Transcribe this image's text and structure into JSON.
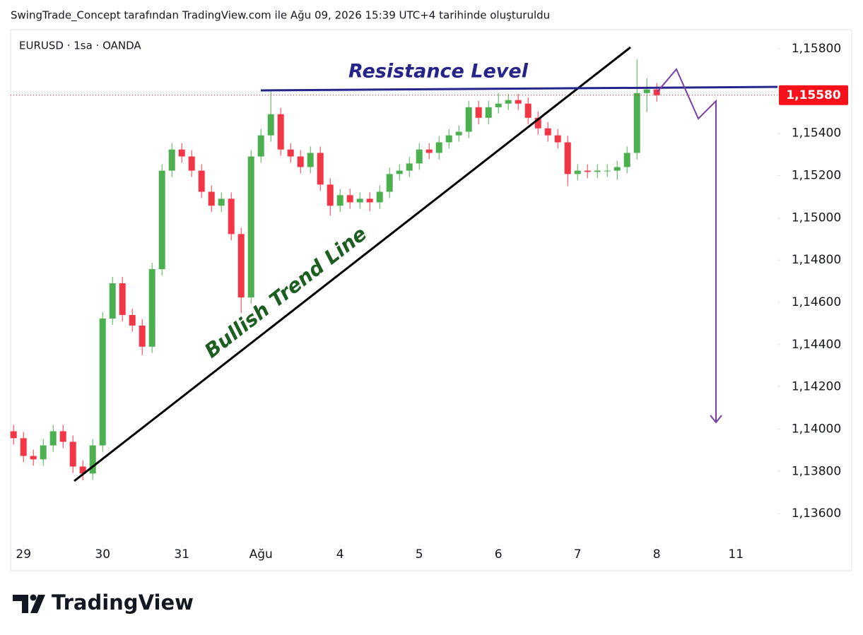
{
  "header": "SwingTrade_Concept tarafından TradingView.com ile Ağu 09, 2026 15:39 UTC+4 tarihinde oluşturuldu",
  "chart_data": {
    "type": "candlestick",
    "symbol": "EURUSD · 1sa · OANDA",
    "annotations": [
      "Resistance Level",
      "Bullish Trend Line"
    ],
    "up_color": "#4caf50",
    "down_color": "#f23645",
    "x": [
      -1,
      0,
      1,
      2,
      3,
      4,
      5,
      6,
      7,
      8,
      9,
      10,
      11,
      12,
      13,
      14,
      15,
      16,
      17,
      18,
      19,
      20,
      21,
      22,
      23,
      24,
      25,
      26,
      27,
      28,
      29,
      30,
      31,
      32,
      33,
      34,
      35,
      36,
      37,
      38,
      39,
      40,
      41,
      42,
      43,
      44,
      45,
      46,
      47,
      48,
      49,
      50,
      51,
      52,
      53,
      54,
      55,
      56,
      57,
      58,
      59,
      60,
      61,
      62,
      63,
      64
    ],
    "open": [
      1.1399,
      1.13957,
      1.13873,
      1.13857,
      1.13923,
      1.1399,
      1.1394,
      1.13823,
      1.1379,
      1.13923,
      1.14523,
      1.1469,
      1.1454,
      1.1449,
      1.1439,
      1.14757,
      1.15223,
      1.15323,
      1.1529,
      1.15223,
      1.15123,
      1.15057,
      1.1509,
      1.14923,
      1.14623,
      1.1529,
      1.1539,
      1.1549,
      1.15323,
      1.1529,
      1.1524,
      1.15307,
      1.15157,
      1.15057,
      1.15107,
      1.15073,
      1.1509,
      1.15073,
      1.15123,
      1.15207,
      1.15223,
      1.15257,
      1.15323,
      1.15307,
      1.15357,
      1.1539,
      1.15407,
      1.15523,
      1.15473,
      1.15523,
      1.1554,
      1.15557,
      1.1554,
      1.15473,
      1.15423,
      1.1539,
      1.15357,
      1.15207,
      1.15223,
      1.15217,
      1.15223,
      1.15223,
      1.1524,
      1.15307,
      1.1559,
      1.15607
    ],
    "high": [
      1.1402,
      1.13987,
      1.13903,
      1.13953,
      1.1402,
      1.1402,
      1.1397,
      1.13853,
      1.13953,
      1.14553,
      1.1472,
      1.1472,
      1.1457,
      1.1452,
      1.14787,
      1.15253,
      1.15353,
      1.15353,
      1.1532,
      1.15253,
      1.15153,
      1.1512,
      1.1512,
      1.14953,
      1.1532,
      1.1542,
      1.156,
      1.1552,
      1.15353,
      1.1532,
      1.15337,
      1.15337,
      1.15187,
      1.15137,
      1.15137,
      1.1512,
      1.1512,
      1.15153,
      1.15237,
      1.15253,
      1.15287,
      1.15353,
      1.15353,
      1.15387,
      1.1542,
      1.15437,
      1.15553,
      1.15553,
      1.15553,
      1.1559,
      1.15587,
      1.15587,
      1.1557,
      1.15503,
      1.15453,
      1.1542,
      1.15387,
      1.15253,
      1.15253,
      1.15253,
      1.15253,
      1.1527,
      1.15337,
      1.1575,
      1.1566,
      1.15637
    ],
    "low": [
      1.13927,
      1.13843,
      1.13827,
      1.13827,
      1.13893,
      1.1391,
      1.13793,
      1.13757,
      1.1376,
      1.13893,
      1.14493,
      1.1451,
      1.1446,
      1.1435,
      1.1436,
      1.14727,
      1.15193,
      1.1526,
      1.15193,
      1.15093,
      1.15027,
      1.15027,
      1.14893,
      1.1455,
      1.14593,
      1.1526,
      1.1536,
      1.15293,
      1.1526,
      1.1521,
      1.1521,
      1.15127,
      1.1501,
      1.15027,
      1.15043,
      1.15043,
      1.1503,
      1.15043,
      1.15093,
      1.15177,
      1.15193,
      1.15227,
      1.15277,
      1.15277,
      1.15327,
      1.1536,
      1.15377,
      1.15443,
      1.15443,
      1.15493,
      1.1551,
      1.1551,
      1.15443,
      1.15393,
      1.1536,
      1.15327,
      1.1515,
      1.15177,
      1.15187,
      1.15187,
      1.15193,
      1.1518,
      1.1521,
      1.15277,
      1.155,
      1.1555
    ],
    "close": [
      1.13957,
      1.13873,
      1.13857,
      1.13923,
      1.1399,
      1.1394,
      1.13823,
      1.1379,
      1.13923,
      1.14523,
      1.1469,
      1.1454,
      1.1449,
      1.1439,
      1.14757,
      1.15223,
      1.15323,
      1.1529,
      1.15223,
      1.15123,
      1.15057,
      1.1509,
      1.14923,
      1.14623,
      1.1529,
      1.1539,
      1.1549,
      1.15323,
      1.1529,
      1.1524,
      1.15307,
      1.15157,
      1.15057,
      1.15107,
      1.15073,
      1.1509,
      1.15073,
      1.15123,
      1.15207,
      1.15223,
      1.15257,
      1.15323,
      1.15307,
      1.15357,
      1.1539,
      1.15407,
      1.15523,
      1.15473,
      1.15523,
      1.1554,
      1.15557,
      1.1554,
      1.15473,
      1.15423,
      1.1539,
      1.15357,
      1.15207,
      1.15223,
      1.15217,
      1.15223,
      1.15223,
      1.1524,
      1.15307,
      1.1559,
      1.15607,
      1.1558
    ],
    "xlim": [
      -1.3,
      76.2
    ],
    "xticks": [
      {
        "value": 0,
        "label": "29"
      },
      {
        "value": 8,
        "label": "30"
      },
      {
        "value": 16,
        "label": "31"
      },
      {
        "value": 24,
        "label": "Ağu"
      },
      {
        "value": 32,
        "label": "4"
      },
      {
        "value": 40,
        "label": "5"
      },
      {
        "value": 48,
        "label": "6"
      },
      {
        "value": 56,
        "label": "7"
      },
      {
        "value": 64,
        "label": "8"
      },
      {
        "value": 72,
        "label": "11"
      }
    ],
    "ylim": [
      1.13457,
      1.1589
    ],
    "yticks": [
      {
        "value": 1.136,
        "label": "1,13600"
      },
      {
        "value": 1.138,
        "label": "1,13800"
      },
      {
        "value": 1.14,
        "label": "1,14000"
      },
      {
        "value": 1.142,
        "label": "1,14200"
      },
      {
        "value": 1.144,
        "label": "1,14400"
      },
      {
        "value": 1.146,
        "label": "1,14600"
      },
      {
        "value": 1.148,
        "label": "1,14800"
      },
      {
        "value": 1.15,
        "label": "1,15000"
      },
      {
        "value": 1.152,
        "label": "1,15200"
      },
      {
        "value": 1.154,
        "label": "1,15400"
      },
      {
        "value": 1.156,
        "label": "1,15600"
      },
      {
        "value": 1.158,
        "label": "1,15800"
      }
    ],
    "price_label": {
      "value": 1.1558,
      "label": "1,15580"
    },
    "price_label_color": "#f7121b"
  },
  "logo": "TradingView"
}
